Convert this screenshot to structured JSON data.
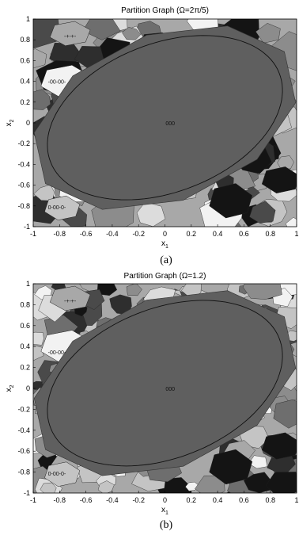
{
  "chart_data": [
    {
      "type": "heatmap",
      "title": "Partition Graph (Ω=2π/5)",
      "xlabel": "x",
      "xlabel_sub": "1",
      "ylabel": "x",
      "ylabel_sub": "2",
      "xlim": [
        -1,
        1
      ],
      "ylim": [
        -1,
        1
      ],
      "xticks": [
        "-1",
        "-0.8",
        "-0.6",
        "-0.4",
        "-0.2",
        "0",
        "0.2",
        "0.4",
        "0.6",
        "0.8",
        "1"
      ],
      "yticks": [
        "1",
        "0.8",
        "0.6",
        "0.4",
        "0.2",
        "0",
        "-0.2",
        "-0.4",
        "-0.6",
        "-0.8",
        "-1"
      ],
      "region_labels": [
        {
          "text": "-+-+-",
          "x": -0.72,
          "y": 0.84
        },
        {
          "text": "-00-00-",
          "x": -0.82,
          "y": 0.4
        },
        {
          "text": "000",
          "x": 0.04,
          "y": 0.0
        },
        {
          "text": "0-00-0-",
          "x": -0.82,
          "y": -0.81
        }
      ],
      "ellipse": {
        "center": [
          0.0,
          0.05
        ],
        "semi_axes": [
          0.98,
          0.68
        ],
        "rotation_deg": 35
      },
      "caption": "(a)",
      "grid": false
    },
    {
      "type": "heatmap",
      "title": "Partition Graph (Ω=1.2)",
      "xlabel": "x",
      "xlabel_sub": "1",
      "ylabel": "x",
      "ylabel_sub": "2",
      "xlim": [
        -1,
        1
      ],
      "ylim": [
        -1,
        1
      ],
      "xticks": [
        "-1",
        "-0.8",
        "-0.6",
        "-0.4",
        "-0.2",
        "0",
        "0.2",
        "0.4",
        "0.6",
        "0.8",
        "1"
      ],
      "yticks": [
        "1",
        "0.8",
        "0.6",
        "0.4",
        "0.2",
        "0",
        "-0.2",
        "-0.4",
        "-0.6",
        "-0.8",
        "-1"
      ],
      "region_labels": [
        {
          "text": "-+-+-",
          "x": -0.72,
          "y": 0.84
        },
        {
          "text": "-00-00-",
          "x": -0.82,
          "y": 0.35
        },
        {
          "text": "000",
          "x": 0.04,
          "y": 0.0
        },
        {
          "text": "0-00-0-",
          "x": -0.82,
          "y": -0.81
        }
      ],
      "ellipse": {
        "center": [
          0.0,
          0.05
        ],
        "semi_axes": [
          0.98,
          0.68
        ],
        "rotation_deg": 35
      },
      "caption": "(b)",
      "grid": false
    }
  ],
  "colors": {
    "central_region": "#5f5f5f",
    "palette": [
      "#141414",
      "#2e2e2e",
      "#4a4a4a",
      "#6e6e6e",
      "#8c8c8c",
      "#a8a8a8",
      "#c4c4c4",
      "#dcdcdc",
      "#f2f2f2"
    ]
  }
}
